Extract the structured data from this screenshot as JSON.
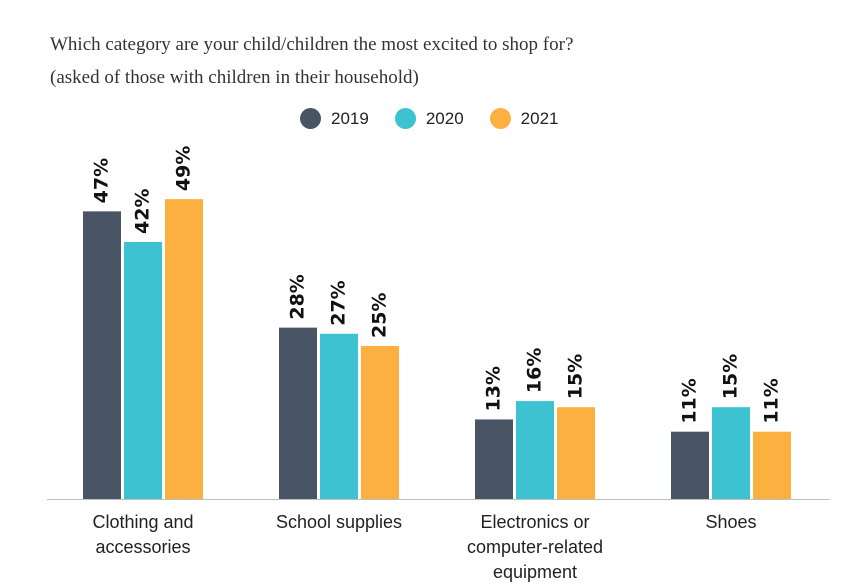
{
  "title_lines": [
    "Which category are your child/children the most excited to shop for?",
    "(asked of those with children in their household)"
  ],
  "colors": {
    "2019": "#495464",
    "2020": "#3cc2d0",
    "2021": "#fbb040"
  },
  "chart_data": {
    "type": "bar",
    "title": "Which category are your child/children the most excited to shop for? (asked of those with children in their household)",
    "categories": [
      "Clothing and accessories",
      "School supplies",
      "Electronics or computer-related equipment",
      "Shoes"
    ],
    "category_label_lines": [
      [
        "Clothing and",
        "accessories"
      ],
      [
        "School supplies"
      ],
      [
        "Electronics or",
        "computer-related",
        "equipment"
      ],
      [
        "Shoes"
      ]
    ],
    "series": [
      {
        "name": "2019",
        "values": [
          47,
          28,
          13,
          11
        ],
        "labels": [
          "47%",
          "28%",
          "13%",
          "11%"
        ]
      },
      {
        "name": "2020",
        "values": [
          42,
          27,
          16,
          15
        ],
        "labels": [
          "42%",
          "27%",
          "16%",
          "15%"
        ]
      },
      {
        "name": "2021",
        "values": [
          49,
          25,
          15,
          11
        ],
        "labels": [
          "49%",
          "25%",
          "15%",
          "11%"
        ]
      }
    ],
    "unit": "%",
    "ylim": [
      0,
      100
    ],
    "legend_position": "top-center",
    "grid": false
  }
}
